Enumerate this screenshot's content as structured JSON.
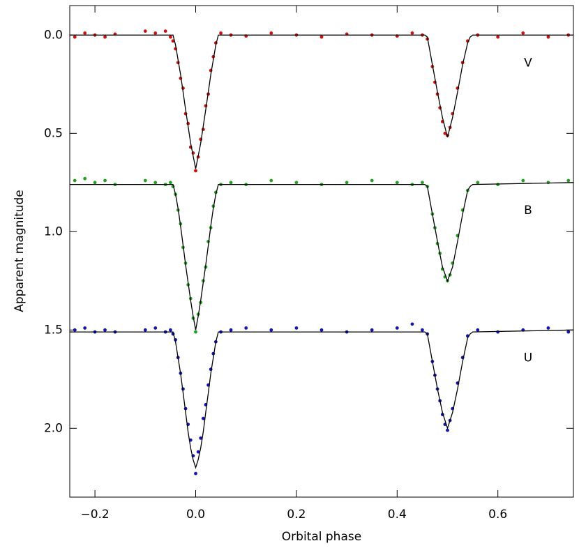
{
  "chart_data": {
    "type": "scatter",
    "x_label": "Orbital phase",
    "y_label": "Apparent magnitude",
    "xlim": [
      -0.25,
      0.75
    ],
    "ylim": [
      2.35,
      -0.15
    ],
    "xticks": [
      {
        "value": -0.2,
        "label": "−0.2"
      },
      {
        "value": 0,
        "label": "0.0"
      },
      {
        "value": 0.2,
        "label": "0.2"
      },
      {
        "value": 0.4,
        "label": "0.4"
      },
      {
        "value": 0.6,
        "label": "0.6"
      }
    ],
    "yticks": [
      {
        "value": 0,
        "label": "0.0"
      },
      {
        "value": 0.5,
        "label": "0.5"
      },
      {
        "value": 1,
        "label": "1.0"
      },
      {
        "value": 1.5,
        "label": "1.5"
      },
      {
        "value": 2,
        "label": "2.0"
      }
    ],
    "model_color": "#000000",
    "model_x": [
      -0.25,
      -0.05,
      -0.045,
      -0.04,
      -0.035,
      -0.03,
      -0.025,
      -0.02,
      -0.015,
      -0.01,
      -0.005,
      0,
      0.005,
      0.01,
      0.015,
      0.02,
      0.025,
      0.03,
      0.035,
      0.04,
      0.045,
      0.05,
      0.45,
      0.455,
      0.46,
      0.47,
      0.48,
      0.49,
      0.5,
      0.51,
      0.52,
      0.53,
      0.54,
      0.545,
      0.55,
      0.75
    ],
    "series": [
      {
        "name": "V",
        "color": "#d01010",
        "x": [
          -0.24,
          -0.22,
          -0.2,
          -0.18,
          -0.16,
          -0.1,
          -0.08,
          -0.06,
          -0.05,
          -0.045,
          -0.04,
          -0.035,
          -0.03,
          -0.025,
          -0.02,
          -0.015,
          -0.01,
          -0.005,
          0,
          0.005,
          0.01,
          0.015,
          0.02,
          0.025,
          0.03,
          0.035,
          0.04,
          0.05,
          0.07,
          0.1,
          0.15,
          0.2,
          0.25,
          0.3,
          0.35,
          0.4,
          0.43,
          0.45,
          0.46,
          0.47,
          0.475,
          0.48,
          0.485,
          0.49,
          0.495,
          0.5,
          0.505,
          0.51,
          0.52,
          0.53,
          0.54,
          0.56,
          0.6,
          0.65,
          0.7,
          0.74
        ],
        "values": [
          0.01,
          -0.01,
          0,
          0.01,
          -0.005,
          -0.02,
          -0.01,
          -0.02,
          0.01,
          0.03,
          0.07,
          0.14,
          0.22,
          0.27,
          0.4,
          0.45,
          0.57,
          0.6,
          0.69,
          0.62,
          0.53,
          0.48,
          0.36,
          0.3,
          0.18,
          0.11,
          0.04,
          -0.01,
          0,
          0.005,
          -0.01,
          0,
          0.01,
          -0.005,
          0,
          0.005,
          -0.01,
          0,
          0.02,
          0.16,
          0.24,
          0.3,
          0.37,
          0.44,
          0.5,
          0.51,
          0.47,
          0.4,
          0.27,
          0.14,
          0.03,
          0,
          0.01,
          -0.01,
          0.01,
          0
        ],
        "model_values": [
          0,
          0,
          0,
          0.05,
          0.125,
          0.2,
          0.29,
          0.38,
          0.465,
          0.55,
          0.615,
          0.68,
          0.615,
          0.55,
          0.465,
          0.38,
          0.29,
          0.2,
          0.125,
          0.05,
          0,
          0,
          0,
          0,
          0.01,
          0.15,
          0.29,
          0.42,
          0.52,
          0.42,
          0.29,
          0.15,
          0.04,
          0.01,
          0,
          0
        ]
      },
      {
        "name": "B",
        "color": "#22a022",
        "x": [
          -0.24,
          -0.22,
          -0.2,
          -0.18,
          -0.16,
          -0.1,
          -0.08,
          -0.06,
          -0.05,
          -0.045,
          -0.04,
          -0.035,
          -0.03,
          -0.025,
          -0.02,
          -0.015,
          -0.01,
          -0.005,
          0,
          0.005,
          0.01,
          0.015,
          0.02,
          0.025,
          0.03,
          0.035,
          0.04,
          0.05,
          0.07,
          0.1,
          0.15,
          0.2,
          0.25,
          0.3,
          0.35,
          0.4,
          0.43,
          0.45,
          0.46,
          0.47,
          0.475,
          0.48,
          0.485,
          0.49,
          0.495,
          0.5,
          0.505,
          0.51,
          0.52,
          0.53,
          0.54,
          0.56,
          0.6,
          0.65,
          0.7,
          0.74
        ],
        "values": [
          0.74,
          0.73,
          0.75,
          0.74,
          0.76,
          0.74,
          0.75,
          0.76,
          0.75,
          0.77,
          0.81,
          0.89,
          0.96,
          1.08,
          1.16,
          1.27,
          1.34,
          1.44,
          1.51,
          1.42,
          1.36,
          1.25,
          1.18,
          1.05,
          0.98,
          0.87,
          0.8,
          0.76,
          0.75,
          0.76,
          0.74,
          0.75,
          0.76,
          0.75,
          0.74,
          0.75,
          0.76,
          0.75,
          0.77,
          0.91,
          0.98,
          1.06,
          1.11,
          1.19,
          1.23,
          1.25,
          1.22,
          1.16,
          1.02,
          0.89,
          0.79,
          0.75,
          0.76,
          0.74,
          0.75,
          0.74
        ],
        "model_values": [
          0.76,
          0.76,
          0.76,
          0.81,
          0.88,
          0.97,
          1.07,
          1.17,
          1.26,
          1.35,
          1.43,
          1.5,
          1.43,
          1.35,
          1.26,
          1.17,
          1.07,
          0.97,
          0.88,
          0.81,
          0.76,
          0.76,
          0.76,
          0.76,
          0.77,
          0.91,
          1.05,
          1.18,
          1.25,
          1.18,
          1.05,
          0.91,
          0.79,
          0.77,
          0.76,
          0.75
        ]
      },
      {
        "name": "U",
        "color": "#1414b4",
        "x": [
          -0.24,
          -0.22,
          -0.2,
          -0.18,
          -0.16,
          -0.1,
          -0.08,
          -0.06,
          -0.05,
          -0.045,
          -0.04,
          -0.035,
          -0.03,
          -0.025,
          -0.02,
          -0.015,
          -0.01,
          -0.005,
          0,
          0.005,
          0.01,
          0.015,
          0.02,
          0.025,
          0.03,
          0.035,
          0.04,
          0.05,
          0.07,
          0.1,
          0.15,
          0.2,
          0.25,
          0.3,
          0.35,
          0.4,
          0.43,
          0.45,
          0.46,
          0.47,
          0.475,
          0.48,
          0.485,
          0.49,
          0.495,
          0.5,
          0.505,
          0.51,
          0.52,
          0.53,
          0.54,
          0.56,
          0.6,
          0.65,
          0.7,
          0.74
        ],
        "values": [
          1.5,
          1.49,
          1.51,
          1.5,
          1.51,
          1.5,
          1.49,
          1.51,
          1.5,
          1.52,
          1.55,
          1.64,
          1.72,
          1.8,
          1.9,
          1.98,
          2.06,
          2.14,
          2.23,
          2.12,
          2.05,
          1.95,
          1.88,
          1.78,
          1.7,
          1.62,
          1.56,
          1.51,
          1.5,
          1.49,
          1.5,
          1.49,
          1.5,
          1.51,
          1.5,
          1.49,
          1.47,
          1.5,
          1.52,
          1.66,
          1.73,
          1.8,
          1.86,
          1.93,
          1.98,
          2.01,
          1.96,
          1.9,
          1.77,
          1.64,
          1.53,
          1.5,
          1.51,
          1.5,
          1.49,
          1.51
        ],
        "model_values": [
          1.51,
          1.51,
          1.51,
          1.56,
          1.64,
          1.72,
          1.82,
          1.92,
          2.02,
          2.1,
          2.16,
          2.2,
          2.16,
          2.1,
          2.02,
          1.92,
          1.82,
          1.72,
          1.64,
          1.56,
          1.51,
          1.51,
          1.51,
          1.51,
          1.52,
          1.66,
          1.8,
          1.92,
          2,
          1.92,
          1.8,
          1.66,
          1.54,
          1.52,
          1.51,
          1.5
        ]
      }
    ]
  }
}
